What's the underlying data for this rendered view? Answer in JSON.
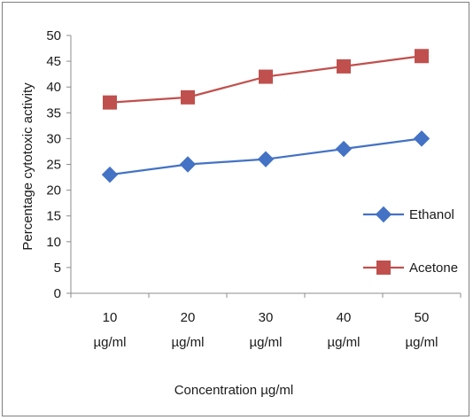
{
  "chart_data": {
    "type": "line",
    "categories": [
      "10 µg/ml",
      "20 µg/ml",
      "30 µg/ml",
      "40 µg/ml",
      "50 µg/ml"
    ],
    "category_lines": [
      [
        "10",
        "µg/ml"
      ],
      [
        "20",
        "µg/ml"
      ],
      [
        "30",
        "µg/ml"
      ],
      [
        "40",
        "µg/ml"
      ],
      [
        "50",
        "µg/ml"
      ]
    ],
    "series": [
      {
        "name": "Ethanol",
        "values": [
          23,
          25,
          26,
          28,
          30
        ],
        "color": "#4472C4",
        "marker": "diamond"
      },
      {
        "name": "Acetone",
        "values": [
          37,
          38,
          42,
          44,
          46
        ],
        "color": "#C0504D",
        "marker": "square"
      }
    ],
    "xlabel": "Concentration µg/ml",
    "ylabel": "Percentage cytotoxic activity",
    "ylim": [
      0,
      50
    ],
    "yticks": [
      0,
      5,
      10,
      15,
      20,
      25,
      30,
      35,
      40,
      45,
      50
    ],
    "grid": false,
    "legend": "right"
  }
}
